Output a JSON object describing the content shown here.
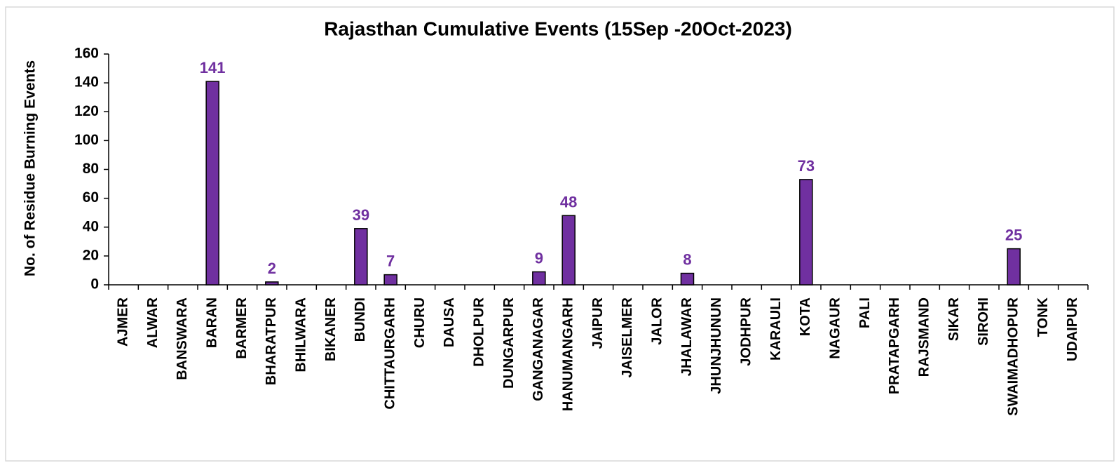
{
  "chart_data": {
    "type": "bar",
    "title": "Rajasthan Cumulative Events (15Sep -20Oct-2023)",
    "y_label": "No. of Residue Burning Events",
    "categories": [
      "AJMER",
      "ALWAR",
      "BANSWARA",
      "BARAN",
      "BARMER",
      "BHARATPUR",
      "BHILWARA",
      "BIKANER",
      "BUNDI",
      "CHITTAURGARH",
      "CHURU",
      "DAUSA",
      "DHOLPUR",
      "DUNGARPUR",
      "GANGANAGAR",
      "HANUMANGARH",
      "JAIPUR",
      "JAISELMER",
      "JALOR",
      "JHALAWAR",
      "JHUNJHUNUN",
      "JODHPUR",
      "KARAULI",
      "KOTA",
      "NAGAUR",
      "PALI",
      "PRATAPGARH",
      "RAJSMAND",
      "SIKAR",
      "SIROHI",
      "SWAIMADHOPUR",
      "TONK",
      "UDAIPUR"
    ],
    "values": [
      0,
      0,
      0,
      141,
      0,
      2,
      0,
      0,
      39,
      7,
      0,
      0,
      0,
      0,
      9,
      48,
      0,
      0,
      0,
      8,
      0,
      0,
      0,
      73,
      0,
      0,
      0,
      0,
      0,
      0,
      25,
      0,
      0
    ],
    "color": "#7030a0",
    "label_color": "#7030a0",
    "ylim": [
      0,
      160
    ],
    "yticks": [
      0,
      20,
      40,
      60,
      80,
      100,
      120,
      140,
      160
    ],
    "grid": false
  }
}
